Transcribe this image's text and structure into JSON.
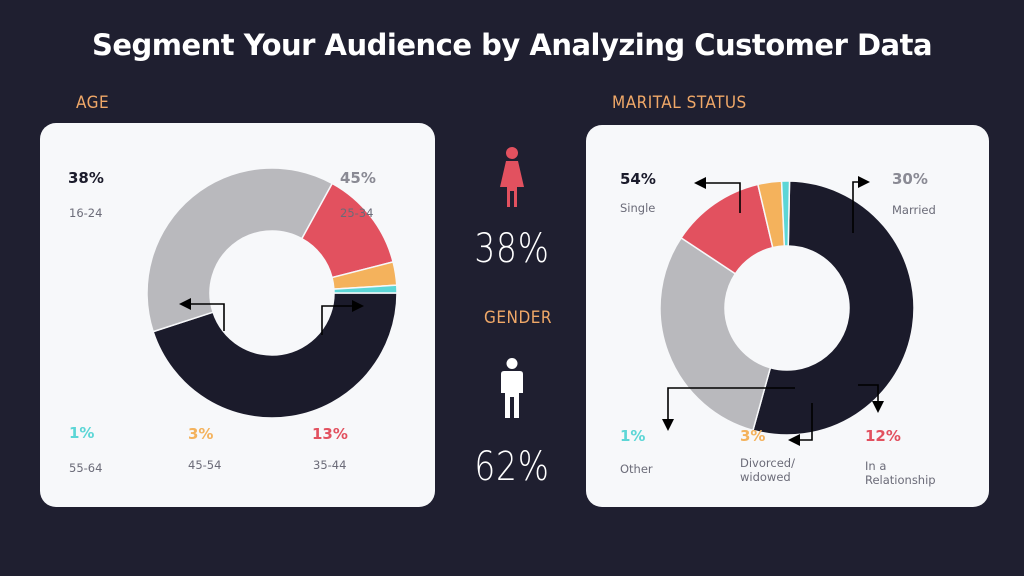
{
  "title": "Segment Your Audience by Analyzing Customer Data",
  "colors": {
    "background": "#1f1f30",
    "accent": "#f0a868",
    "dark": "#1b1b2b",
    "gray": "#b9b9bd",
    "red": "#e2515f",
    "orange": "#f4b25c",
    "teal": "#5cd6d6"
  },
  "age": {
    "label": "AGE",
    "items": [
      {
        "pct": "38%",
        "text": "16-24"
      },
      {
        "pct": "45%",
        "text": "25-34"
      },
      {
        "pct": "1%",
        "text": "55-64"
      },
      {
        "pct": "3%",
        "text": "45-54"
      },
      {
        "pct": "13%",
        "text": "35-44"
      }
    ]
  },
  "gender": {
    "label": "GENDER",
    "female_pct": "38%",
    "male_pct": "62%",
    "female_icon": "female-icon",
    "male_icon": "male-icon"
  },
  "marital": {
    "label": "MARITAL STATUS",
    "items": [
      {
        "pct": "54%",
        "text": "Single"
      },
      {
        "pct": "30%",
        "text": "Married"
      },
      {
        "pct": "1%",
        "text": "Other"
      },
      {
        "pct": "3%",
        "text": "Divorced/ widowed"
      },
      {
        "pct": "12%",
        "text": "In a Relationship"
      }
    ]
  },
  "chart_data": [
    {
      "type": "pie",
      "title": "AGE",
      "donut": true,
      "slices": [
        {
          "label": "25-34",
          "value": 45,
          "color": "#1b1b2b"
        },
        {
          "label": "16-24",
          "value": 38,
          "color": "#b9b9bd"
        },
        {
          "label": "35-44",
          "value": 13,
          "color": "#e2515f"
        },
        {
          "label": "45-54",
          "value": 3,
          "color": "#f4b25c"
        },
        {
          "label": "55-64",
          "value": 1,
          "color": "#5cd6d6"
        }
      ]
    },
    {
      "type": "pie",
      "title": "MARITAL STATUS",
      "donut": true,
      "slices": [
        {
          "label": "Single",
          "value": 54,
          "color": "#1b1b2b"
        },
        {
          "label": "Married",
          "value": 30,
          "color": "#b9b9bd"
        },
        {
          "label": "In a Relationship",
          "value": 12,
          "color": "#e2515f"
        },
        {
          "label": "Divorced/ widowed",
          "value": 3,
          "color": "#f4b25c"
        },
        {
          "label": "Other",
          "value": 1,
          "color": "#5cd6d6"
        }
      ]
    }
  ]
}
